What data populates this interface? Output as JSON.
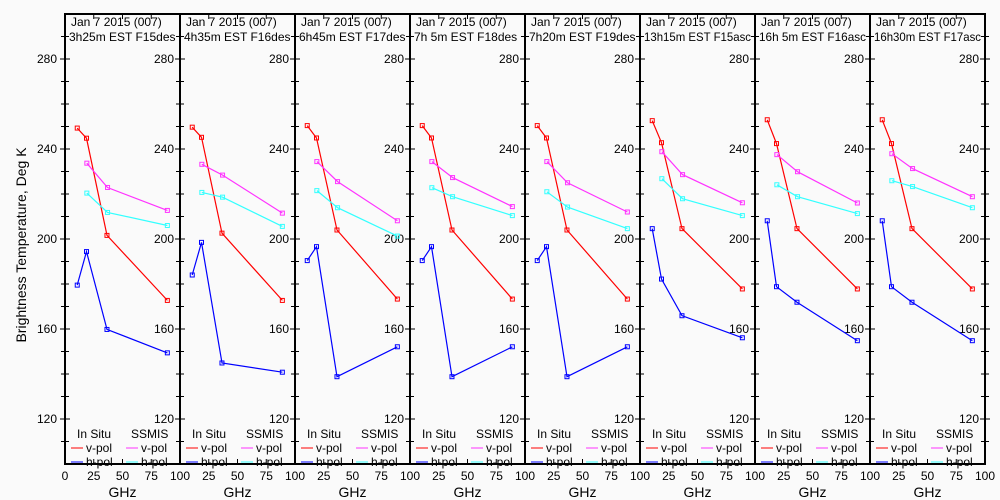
{
  "chart_data": [
    {
      "type": "line",
      "title_line1": "Jan 7 2015 (007)",
      "title_line2": "3h25m EST F15des",
      "series": [
        {
          "name": "In Situ v-pol",
          "color": "#ff0000",
          "x": [
            10.65,
            18.7,
            36.5,
            89
          ],
          "y": [
            249.3,
            244.8,
            201.6,
            172.7
          ]
        },
        {
          "name": "In Situ h-pol",
          "color": "#0000ff",
          "x": [
            10.65,
            18.7,
            36.5,
            89
          ],
          "y": [
            179.5,
            194.4,
            159.8,
            149.4
          ]
        },
        {
          "name": "SSMIS v-pol",
          "color": "#ff33ff",
          "x": [
            19,
            37,
            89
          ],
          "y": [
            233.7,
            222.9,
            212.7
          ]
        },
        {
          "name": "SSMIS h-pol",
          "color": "#33ffff",
          "x": [
            19,
            37,
            89
          ],
          "y": [
            220.4,
            211.8,
            206.0
          ]
        }
      ]
    },
    {
      "type": "line",
      "title_line1": "Jan 7 2015 (007)",
      "title_line2": "4h35m EST F16des",
      "series": [
        {
          "name": "In Situ v-pol",
          "color": "#ff0000",
          "x": [
            10.65,
            18.7,
            36.5,
            89
          ],
          "y": [
            249.7,
            245.2,
            202.6,
            172.7
          ]
        },
        {
          "name": "In Situ h-pol",
          "color": "#0000ff",
          "x": [
            10.65,
            18.7,
            36.5,
            89
          ],
          "y": [
            184.0,
            198.5,
            144.9,
            140.8
          ]
        },
        {
          "name": "SSMIS v-pol",
          "color": "#ff33ff",
          "x": [
            19,
            37,
            89
          ],
          "y": [
            233.2,
            228.4,
            211.5
          ]
        },
        {
          "name": "SSMIS h-pol",
          "color": "#33ffff",
          "x": [
            19,
            37,
            89
          ],
          "y": [
            220.7,
            218.6,
            205.6
          ]
        }
      ]
    },
    {
      "type": "line",
      "title_line1": "Jan 7 2015 (007)",
      "title_line2": "6h45m EST F17des",
      "series": [
        {
          "name": "In Situ v-pol",
          "color": "#ff0000",
          "x": [
            10.65,
            18.7,
            36.5,
            89
          ],
          "y": [
            250.4,
            244.9,
            204.0,
            173.3
          ]
        },
        {
          "name": "In Situ h-pol",
          "color": "#0000ff",
          "x": [
            10.65,
            18.7,
            36.5,
            89
          ],
          "y": [
            190.4,
            196.6,
            138.8,
            152.1
          ]
        },
        {
          "name": "SSMIS v-pol",
          "color": "#ff33ff",
          "x": [
            19,
            37,
            89
          ],
          "y": [
            234.4,
            225.5,
            208.1
          ]
        },
        {
          "name": "SSMIS h-pol",
          "color": "#33ffff",
          "x": [
            19,
            37,
            89
          ],
          "y": [
            221.5,
            213.9,
            201.3
          ]
        }
      ]
    },
    {
      "type": "line",
      "title_line1": "Jan 7 2015 (007)",
      "title_line2": "7h 5m EST F18des",
      "series": [
        {
          "name": "In Situ v-pol",
          "color": "#ff0000",
          "x": [
            10.65,
            18.7,
            36.5,
            89
          ],
          "y": [
            250.4,
            244.9,
            204.0,
            173.3
          ]
        },
        {
          "name": "In Situ h-pol",
          "color": "#0000ff",
          "x": [
            10.65,
            18.7,
            36.5,
            89
          ],
          "y": [
            190.4,
            196.6,
            138.8,
            152.1
          ]
        },
        {
          "name": "SSMIS v-pol",
          "color": "#ff33ff",
          "x": [
            19,
            37,
            89
          ],
          "y": [
            234.4,
            227.3,
            214.4
          ]
        },
        {
          "name": "SSMIS h-pol",
          "color": "#33ffff",
          "x": [
            19,
            37,
            89
          ],
          "y": [
            222.8,
            218.8,
            210.4
          ]
        }
      ]
    },
    {
      "type": "line",
      "title_line1": "Jan 7 2015 (007)",
      "title_line2": "7h20m EST F19des",
      "series": [
        {
          "name": "In Situ v-pol",
          "color": "#ff0000",
          "x": [
            10.65,
            18.7,
            36.5,
            89
          ],
          "y": [
            250.4,
            244.9,
            204.0,
            173.3
          ]
        },
        {
          "name": "In Situ h-pol",
          "color": "#0000ff",
          "x": [
            10.65,
            18.7,
            36.5,
            89
          ],
          "y": [
            190.4,
            196.6,
            138.8,
            152.1
          ]
        },
        {
          "name": "SSMIS v-pol",
          "color": "#ff33ff",
          "x": [
            19,
            37,
            89
          ],
          "y": [
            234.4,
            225.0,
            212.0
          ]
        },
        {
          "name": "SSMIS h-pol",
          "color": "#33ffff",
          "x": [
            19,
            37,
            89
          ],
          "y": [
            221.0,
            214.2,
            204.6
          ]
        }
      ]
    },
    {
      "type": "line",
      "title_line1": "Jan 7 2015 (007)",
      "title_line2": "13h15m EST F15asc",
      "series": [
        {
          "name": "In Situ v-pol",
          "color": "#ff0000",
          "x": [
            10.65,
            18.7,
            36.5,
            89
          ],
          "y": [
            252.6,
            242.8,
            204.6,
            177.8
          ]
        },
        {
          "name": "In Situ h-pol",
          "color": "#0000ff",
          "x": [
            10.65,
            18.7,
            36.5,
            89
          ],
          "y": [
            204.6,
            182.2,
            165.9,
            156.1
          ]
        },
        {
          "name": "SSMIS v-pol",
          "color": "#ff33ff",
          "x": [
            19,
            37,
            89
          ],
          "y": [
            238.8,
            228.6,
            216.1
          ]
        },
        {
          "name": "SSMIS h-pol",
          "color": "#33ffff",
          "x": [
            19,
            37,
            89
          ],
          "y": [
            226.8,
            217.9,
            210.4
          ]
        }
      ]
    },
    {
      "type": "line",
      "title_line1": "Jan 7 2015 (007)",
      "title_line2": "16h 5m EST F16asc",
      "series": [
        {
          "name": "In Situ v-pol",
          "color": "#ff0000",
          "x": [
            10.65,
            18.7,
            36.5,
            89
          ],
          "y": [
            253.0,
            242.4,
            204.6,
            177.8
          ]
        },
        {
          "name": "In Situ h-pol",
          "color": "#0000ff",
          "x": [
            10.65,
            18.7,
            36.5,
            89
          ],
          "y": [
            208.1,
            178.8,
            171.9,
            154.8
          ]
        },
        {
          "name": "SSMIS v-pol",
          "color": "#ff33ff",
          "x": [
            19,
            37,
            89
          ],
          "y": [
            237.5,
            229.9,
            216.0
          ]
        },
        {
          "name": "SSMIS h-pol",
          "color": "#33ffff",
          "x": [
            19,
            37,
            89
          ],
          "y": [
            224.1,
            218.8,
            211.3
          ]
        }
      ]
    },
    {
      "type": "line",
      "title_line1": "Jan 7 2015 (007)",
      "title_line2": "16h30m EST F17asc",
      "series": [
        {
          "name": "In Situ v-pol",
          "color": "#ff0000",
          "x": [
            10.65,
            18.7,
            36.5,
            89
          ],
          "y": [
            253.0,
            242.4,
            204.6,
            177.8
          ]
        },
        {
          "name": "In Situ h-pol",
          "color": "#0000ff",
          "x": [
            10.65,
            18.7,
            36.5,
            89
          ],
          "y": [
            208.1,
            178.8,
            171.9,
            154.8
          ]
        },
        {
          "name": "SSMIS v-pol",
          "color": "#ff33ff",
          "x": [
            19,
            37,
            89
          ],
          "y": [
            237.9,
            231.3,
            218.8
          ]
        },
        {
          "name": "SSMIS h-pol",
          "color": "#33ffff",
          "x": [
            19,
            37,
            89
          ],
          "y": [
            225.9,
            223.3,
            213.9
          ]
        }
      ]
    }
  ],
  "axes": {
    "ylabel": "Brightness Temperature, Deg K",
    "xlabel": "GHz",
    "xlim": [
      0,
      100
    ],
    "ylim": [
      100,
      300
    ],
    "xticks": [
      "0",
      "25",
      "50",
      "75",
      "100"
    ],
    "yticks": [
      "120",
      "160",
      "200",
      "240",
      "280"
    ],
    "grid": false
  },
  "legend": {
    "placement": "bottom",
    "insitu_header": "In Situ",
    "ssmis_header": "SSMIS",
    "vpol": "v-pol",
    "hpol": "h-pol"
  }
}
